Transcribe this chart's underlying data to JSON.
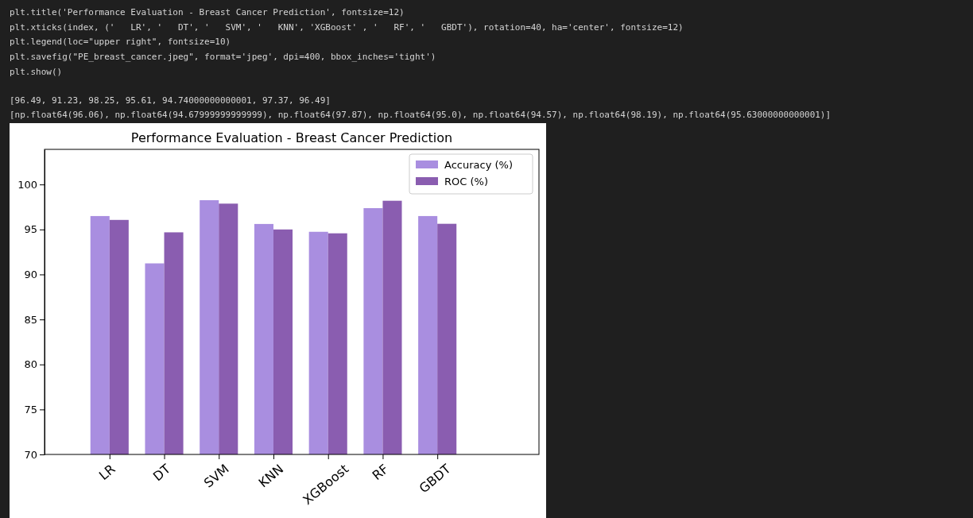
{
  "chart_data": {
    "type": "bar",
    "title": "Performance Evaluation - Breast Cancer Prediction",
    "categories": [
      "LR",
      "DT",
      "SVM",
      "KNN",
      "XGBoost",
      "RF",
      "GBDT"
    ],
    "series": [
      {
        "name": "Accuracy (%)",
        "color": "#a98ee0",
        "values": [
          96.49,
          91.23,
          98.25,
          95.61,
          94.74,
          97.37,
          96.49
        ]
      },
      {
        "name": "ROC (%)",
        "color": "#8a5db0",
        "values": [
          96.06,
          94.68,
          97.87,
          95.0,
          94.57,
          98.19,
          95.63
        ]
      }
    ],
    "ylim": [
      70,
      103.9
    ],
    "yticks": [
      70,
      75,
      80,
      85,
      90,
      95,
      100
    ],
    "grid": false,
    "legend": "top right",
    "annotations": [
      "plt.title('Performance Evaluation - Breast Cancer Prediction', fontsize=12)",
      "plt.xticks(index, ('   LR', '   DT', '   SVM', '   KNN', 'XGBoost' , '   RF', '   GBDT'), rotation=40, ha='center', fontsize=12)",
      "plt.legend(loc=\"upper right\", fontsize=10)",
      "plt.savefig(\"PE_breast_cancer.jpeg\", format='jpeg', dpi=400, bbox_inches='tight')",
      "plt.show()",
      "[96.49, 91.23, 98.25, 95.61, 94.74000000000001, 97.37, 96.49]",
      "[np.float64(96.06), np.float64(94.67999999999999), np.float64(97.87), np.float64(95.0), np.float64(94.57), np.float64(98.19), np.float64(95.63000000000001)]"
    ]
  }
}
